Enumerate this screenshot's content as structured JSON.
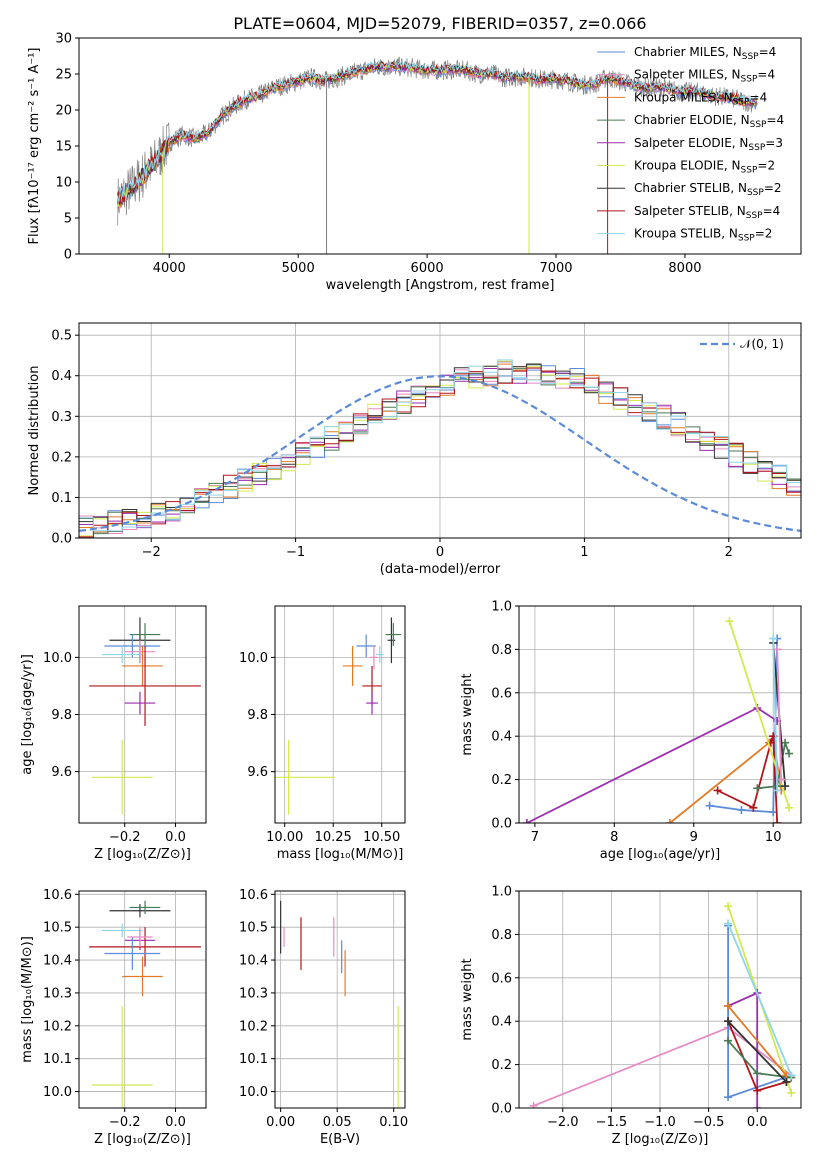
{
  "colors": {
    "chabrier_miles": "#5b8bd9",
    "salpeter_miles": "#e88bc4",
    "kroupa_miles": "#e07b2a",
    "chabrier_elodie": "#4a7a55",
    "salpeter_elodie": "#9b2fae",
    "kroupa_elodie": "#d4e850",
    "chabrier_stelib": "#333333",
    "salpeter_stelib": "#b3141a",
    "kroupa_stelib": "#8fd6e8",
    "data": "#808080",
    "normal": "#5b8bd9"
  },
  "chart_data": [
    {
      "id": "spectrum",
      "type": "line",
      "title": "PLATE=0604, MJD=52079, FIBERID=0357, z=0.066",
      "xlabel": "wavelength [Angstrom, rest frame]",
      "ylabel": "Flux [fλ10⁻¹⁷ erg cm⁻² s⁻¹ A⁻¹]",
      "xlim": [
        3300,
        8900
      ],
      "ylim": [
        0,
        30
      ],
      "xticks": [
        "4000",
        "5000",
        "6000",
        "7000",
        "8000"
      ],
      "yticks": [
        "0",
        "5",
        "10",
        "15",
        "20",
        "25",
        "30"
      ],
      "grid": false,
      "legend_placement": "right",
      "legend": [
        {
          "label": "Chabrier MILES, N",
          "sub": "SSP",
          "suffix": "=4",
          "color": "chabrier_miles"
        },
        {
          "label": "Salpeter MILES, N",
          "sub": "SSP",
          "suffix": "=4",
          "color": "salpeter_miles"
        },
        {
          "label": "Kroupa MILES, N",
          "sub": "SSP",
          "suffix": "=4",
          "color": "kroupa_miles"
        },
        {
          "label": "Chabrier ELODIE, N",
          "sub": "SSP",
          "suffix": "=4",
          "color": "chabrier_elodie"
        },
        {
          "label": "Salpeter ELODIE, N",
          "sub": "SSP",
          "suffix": "=3",
          "color": "salpeter_elodie"
        },
        {
          "label": "Kroupa ELODIE, N",
          "sub": "SSP",
          "suffix": "=2",
          "color": "kroupa_elodie"
        },
        {
          "label": "Chabrier STELIB, N",
          "sub": "SSP",
          "suffix": "=2",
          "color": "chabrier_stelib"
        },
        {
          "label": "Salpeter STELIB, N",
          "sub": "SSP",
          "suffix": "=4",
          "color": "salpeter_stelib"
        },
        {
          "label": "Kroupa STELIB, N",
          "sub": "SSP",
          "suffix": "=2",
          "color": "kroupa_stelib"
        }
      ],
      "continuum": [
        [
          3600,
          7.5
        ],
        [
          3700,
          9
        ],
        [
          3800,
          11
        ],
        [
          3900,
          13
        ],
        [
          4000,
          15.5
        ],
        [
          4100,
          16.5
        ],
        [
          4200,
          16
        ],
        [
          4300,
          16.8
        ],
        [
          4400,
          19
        ],
        [
          4500,
          20.5
        ],
        [
          4600,
          21.5
        ],
        [
          4700,
          22
        ],
        [
          4800,
          23
        ],
        [
          4900,
          23.5
        ],
        [
          5000,
          24
        ],
        [
          5100,
          24.5
        ],
        [
          5200,
          24
        ],
        [
          5300,
          24.5
        ],
        [
          5400,
          25
        ],
        [
          5500,
          25.5
        ],
        [
          5600,
          26
        ],
        [
          5700,
          26
        ],
        [
          5800,
          26
        ],
        [
          5900,
          25.8
        ],
        [
          6000,
          25.5
        ],
        [
          6100,
          25.5
        ],
        [
          6200,
          25.6
        ],
        [
          6300,
          25.5
        ],
        [
          6400,
          25
        ],
        [
          6500,
          25
        ],
        [
          6600,
          24.5
        ],
        [
          6700,
          24.6
        ],
        [
          6800,
          24.5
        ],
        [
          6900,
          24.2
        ],
        [
          7000,
          24.3
        ],
        [
          7100,
          24
        ],
        [
          7200,
          23.5
        ],
        [
          7300,
          23.6
        ],
        [
          7400,
          24.5
        ],
        [
          7500,
          24
        ],
        [
          7600,
          23.5
        ],
        [
          7700,
          23
        ],
        [
          7800,
          23.2
        ],
        [
          7900,
          22.8
        ],
        [
          8000,
          22.5
        ],
        [
          8100,
          22.5
        ],
        [
          8200,
          22
        ],
        [
          8300,
          21.8
        ],
        [
          8400,
          21.5
        ],
        [
          8500,
          21
        ],
        [
          8560,
          21
        ]
      ],
      "features": [
        {
          "x": 5220,
          "y": 0,
          "color": "data"
        },
        {
          "x": 6790,
          "y": 0,
          "color": "kroupa_elodie"
        },
        {
          "x": 7400,
          "y": 0,
          "color": "salpeter_stelib"
        },
        {
          "x": 3950,
          "y": 0,
          "color": "kroupa_elodie"
        }
      ]
    },
    {
      "id": "residuals",
      "type": "histogram",
      "xlabel": "(data-model)/error",
      "ylabel": "Normed distribution",
      "xlim": [
        -2.5,
        2.5
      ],
      "ylim": [
        0,
        0.53
      ],
      "xticks": [
        "−2",
        "−1",
        "0",
        "1",
        "2"
      ],
      "yticks": [
        "0.0",
        "0.1",
        "0.2",
        "0.3",
        "0.4",
        "0.5"
      ],
      "grid": true,
      "legend_placement": "top-right",
      "legend": [
        {
          "label": "𝒩(0, 1)",
          "color": "normal",
          "dashed": true
        }
      ],
      "bin_width": 0.1,
      "bin_start": -2.5,
      "base_values": [
        0.027,
        0.032,
        0.038,
        0.045,
        0.052,
        0.06,
        0.07,
        0.082,
        0.095,
        0.11,
        0.125,
        0.14,
        0.155,
        0.172,
        0.19,
        0.21,
        0.225,
        0.245,
        0.262,
        0.282,
        0.3,
        0.318,
        0.335,
        0.352,
        0.368,
        0.38,
        0.39,
        0.4,
        0.405,
        0.41,
        0.41,
        0.41,
        0.405,
        0.398,
        0.39,
        0.375,
        0.36,
        0.345,
        0.33,
        0.315,
        0.298,
        0.28,
        0.262,
        0.245,
        0.225,
        0.205,
        0.185,
        0.168,
        0.15,
        0.13,
        0.118,
        0.104,
        0.09,
        0.078,
        0.067,
        0.058,
        0.05,
        0.043,
        0.037,
        0.032,
        0.027,
        0.025,
        0.022,
        0.02,
        0.018,
        0.015,
        0.013,
        0.012,
        0.011,
        0.01
      ]
    },
    {
      "id": "age_vs_Z",
      "type": "scatter",
      "xlabel": "Z [log₁₀(Z/Z⊙)]",
      "ylabel": "age  [log₁₀(age/yr)]",
      "xlim": [
        -0.38,
        0.12
      ],
      "ylim": [
        9.42,
        10.18
      ],
      "xticks": [
        "−0.2",
        "0.0"
      ],
      "yticks": [
        "9.6",
        "9.8",
        "10.0"
      ],
      "grid": true,
      "points": [
        {
          "x": -0.14,
          "y": 10.06,
          "xerr": 0.12,
          "yerr": 0.08,
          "color": "chabrier_stelib"
        },
        {
          "x": -0.12,
          "y": 10.08,
          "xerr": 0.06,
          "yerr": 0.04,
          "color": "chabrier_elodie"
        },
        {
          "x": -0.17,
          "y": 10.04,
          "xerr": 0.11,
          "yerr": 0.04,
          "color": "chabrier_miles"
        },
        {
          "x": -0.21,
          "y": 10.01,
          "xerr": 0.08,
          "yerr": 0.03,
          "color": "kroupa_stelib"
        },
        {
          "x": -0.14,
          "y": 10.02,
          "xerr": 0.06,
          "yerr": 0.04,
          "color": "salpeter_miles"
        },
        {
          "x": -0.13,
          "y": 9.97,
          "xerr": 0.08,
          "yerr": 0.07,
          "color": "kroupa_miles"
        },
        {
          "x": -0.12,
          "y": 9.9,
          "xerr": 0.22,
          "yerr": 0.14,
          "color": "salpeter_stelib"
        },
        {
          "x": -0.14,
          "y": 9.84,
          "xerr": 0.06,
          "yerr": 0.04,
          "color": "salpeter_elodie"
        },
        {
          "x": -0.21,
          "y": 9.58,
          "xerr": 0.12,
          "yerr": 0.13,
          "color": "kroupa_elodie"
        }
      ]
    },
    {
      "id": "age_vs_mass",
      "type": "scatter",
      "xlabel": "mass [log₁₀(M/M⊙)]",
      "ylabel": "",
      "xlim": [
        9.95,
        10.62
      ],
      "ylim": [
        9.42,
        10.18
      ],
      "xticks": [
        "10.00",
        "10.25",
        "10.50"
      ],
      "yticks": [
        "9.6",
        "9.8",
        "10.0"
      ],
      "grid": true,
      "points": [
        {
          "x": 10.55,
          "y": 10.06,
          "xerr": 0.02,
          "yerr": 0.08,
          "color": "chabrier_stelib"
        },
        {
          "x": 10.56,
          "y": 10.08,
          "xerr": 0.04,
          "yerr": 0.04,
          "color": "chabrier_elodie"
        },
        {
          "x": 10.42,
          "y": 10.04,
          "xerr": 0.05,
          "yerr": 0.04,
          "color": "chabrier_miles"
        },
        {
          "x": 10.49,
          "y": 10.01,
          "xerr": 0.02,
          "yerr": 0.03,
          "color": "kroupa_stelib"
        },
        {
          "x": 10.46,
          "y": 10.0,
          "xerr": 0.02,
          "yerr": 0.04,
          "color": "salpeter_miles"
        },
        {
          "x": 10.35,
          "y": 9.97,
          "xerr": 0.05,
          "yerr": 0.07,
          "color": "kroupa_miles"
        },
        {
          "x": 10.45,
          "y": 9.9,
          "xerr": 0.05,
          "yerr": 0.07,
          "color": "salpeter_stelib"
        },
        {
          "x": 10.45,
          "y": 9.84,
          "xerr": 0.03,
          "yerr": 0.04,
          "color": "salpeter_elodie"
        },
        {
          "x": 10.02,
          "y": 9.58,
          "xerr": 0.24,
          "yerr": 0.13,
          "color": "kroupa_elodie"
        }
      ]
    },
    {
      "id": "weight_vs_age",
      "type": "line",
      "xlabel": "age  [log₁₀(age/yr)]",
      "ylabel": "mass weight",
      "xlim": [
        6.8,
        10.35
      ],
      "ylim": [
        0,
        1
      ],
      "xticks": [
        "7",
        "8",
        "9",
        "10"
      ],
      "yticks": [
        "0.0",
        "0.2",
        "0.4",
        "0.6",
        "0.8",
        "1.0"
      ],
      "grid": true,
      "series": [
        {
          "color": "salpeter_elodie",
          "x": [
            6.9,
            9.8,
            10.05
          ],
          "y": [
            0.0,
            0.53,
            0.47
          ]
        },
        {
          "color": "kroupa_miles",
          "x": [
            8.7,
            9.95,
            10.0,
            10.1
          ],
          "y": [
            0.0,
            0.37,
            0.4,
            0.15
          ]
        },
        {
          "color": "chabrier_miles",
          "x": [
            9.2,
            9.6,
            10.0,
            10.05
          ],
          "y": [
            0.08,
            0.06,
            0.05,
            0.85
          ]
        },
        {
          "color": "salpeter_stelib",
          "x": [
            9.3,
            9.75,
            9.97,
            10.0,
            10.05
          ],
          "y": [
            0.15,
            0.07,
            0.37,
            0.4,
            0.0
          ]
        },
        {
          "color": "kroupa_elodie",
          "x": [
            9.45,
            10.2
          ],
          "y": [
            0.93,
            0.07
          ]
        },
        {
          "color": "chabrier_elodie",
          "x": [
            9.8,
            10.05,
            10.15,
            10.2
          ],
          "y": [
            0.16,
            0.17,
            0.37,
            0.32
          ]
        },
        {
          "color": "chabrier_stelib",
          "x": [
            10.0,
            10.15
          ],
          "y": [
            0.83,
            0.17
          ]
        },
        {
          "color": "kroupa_stelib",
          "x": [
            10.0,
            10.05
          ],
          "y": [
            0.85,
            0.15
          ]
        },
        {
          "color": "salpeter_miles",
          "x": [
            10.05,
            10.1
          ],
          "y": [
            0.8,
            0.2
          ]
        }
      ]
    },
    {
      "id": "mass_vs_Z",
      "type": "scatter",
      "xlabel": "Z [log₁₀(Z/Z⊙)]",
      "ylabel": "mass [log₁₀(M/M⊙)]",
      "xlim": [
        -0.38,
        0.12
      ],
      "ylim": [
        9.95,
        10.61
      ],
      "xticks": [
        "−0.2",
        "0.0"
      ],
      "yticks": [
        "10.0",
        "10.1",
        "10.2",
        "10.3",
        "10.4",
        "10.5",
        "10.6"
      ],
      "grid": true,
      "points": [
        {
          "x": -0.14,
          "y": 10.55,
          "xerr": 0.12,
          "yerr": 0.02,
          "color": "chabrier_stelib"
        },
        {
          "x": -0.12,
          "y": 10.56,
          "xerr": 0.06,
          "yerr": 0.02,
          "color": "chabrier_elodie"
        },
        {
          "x": -0.21,
          "y": 10.49,
          "xerr": 0.08,
          "yerr": 0.02,
          "color": "kroupa_stelib"
        },
        {
          "x": -0.14,
          "y": 10.46,
          "xerr": 0.06,
          "yerr": 0.03,
          "color": "salpeter_elodie"
        },
        {
          "x": -0.12,
          "y": 10.44,
          "xerr": 0.22,
          "yerr": 0.06,
          "color": "salpeter_stelib"
        },
        {
          "x": -0.17,
          "y": 10.42,
          "xerr": 0.11,
          "yerr": 0.05,
          "color": "chabrier_miles"
        },
        {
          "x": -0.14,
          "y": 10.47,
          "xerr": 0.05,
          "yerr": 0.03,
          "color": "salpeter_miles"
        },
        {
          "x": -0.13,
          "y": 10.35,
          "xerr": 0.08,
          "yerr": 0.06,
          "color": "kroupa_miles"
        },
        {
          "x": -0.21,
          "y": 10.02,
          "xerr": 0.12,
          "yerr": 0.24,
          "color": "kroupa_elodie"
        }
      ]
    },
    {
      "id": "mass_vs_ebv",
      "type": "scatter",
      "xlabel": "E(B-V)",
      "ylabel": "",
      "xlim": [
        -0.005,
        0.11
      ],
      "ylim": [
        9.95,
        10.61
      ],
      "xticks": [
        "0.00",
        "0.05",
        "0.10"
      ],
      "yticks": [
        "10.0",
        "10.1",
        "10.2",
        "10.3",
        "10.4",
        "10.5",
        "10.6"
      ],
      "grid": true,
      "points": [
        {
          "x": 0.0,
          "y": 10.5,
          "xerr": 0,
          "yerr": 0.08,
          "color": "chabrier_stelib"
        },
        {
          "x": 0.003,
          "y": 10.47,
          "xerr": 0,
          "yerr": 0.03,
          "color": "salpeter_miles"
        },
        {
          "x": 0.018,
          "y": 10.45,
          "xerr": 0,
          "yerr": 0.08,
          "color": "salpeter_stelib"
        },
        {
          "x": 0.047,
          "y": 10.47,
          "xerr": 0,
          "yerr": 0.06,
          "color": "salpeter_miles"
        },
        {
          "x": 0.054,
          "y": 10.41,
          "xerr": 0,
          "yerr": 0.05,
          "color": "chabrier_miles"
        },
        {
          "x": 0.057,
          "y": 10.36,
          "xerr": 0,
          "yerr": 0.07,
          "color": "kroupa_miles"
        },
        {
          "x": 0.104,
          "y": 10.07,
          "xerr": 0,
          "yerr": 0.19,
          "color": "kroupa_elodie"
        }
      ]
    },
    {
      "id": "weight_vs_Z",
      "type": "line",
      "xlabel": "Z [log₁₀(Z/Z⊙)]",
      "ylabel": "mass weight",
      "xlim": [
        -2.45,
        0.45
      ],
      "ylim": [
        0,
        1
      ],
      "xticks": [
        "−2.0",
        "−1.5",
        "−1.0",
        "−0.5",
        "0.0"
      ],
      "yticks": [
        "0.0",
        "0.2",
        "0.4",
        "0.6",
        "0.8",
        "1.0"
      ],
      "grid": true,
      "series": [
        {
          "color": "salpeter_miles",
          "x": [
            -2.3,
            -0.3,
            0.35
          ],
          "y": [
            0.01,
            0.37,
            0.15
          ]
        },
        {
          "color": "kroupa_elodie",
          "x": [
            -0.3,
            0.35
          ],
          "y": [
            0.93,
            0.07
          ]
        },
        {
          "color": "chabrier_miles",
          "x": [
            -0.3,
            -0.3,
            0.35
          ],
          "y": [
            0.84,
            0.05,
            0.15
          ]
        },
        {
          "color": "salpeter_elodie",
          "x": [
            -0.3,
            0.0,
            0.0
          ],
          "y": [
            0.47,
            0.53,
            0.0
          ]
        },
        {
          "color": "salpeter_stelib",
          "x": [
            -0.3,
            0.0,
            0.3
          ],
          "y": [
            0.4,
            0.08,
            0.12
          ]
        },
        {
          "color": "chabrier_elodie",
          "x": [
            -0.3,
            0.0,
            0.35
          ],
          "y": [
            0.31,
            0.16,
            0.14
          ]
        },
        {
          "color": "kroupa_miles",
          "x": [
            -0.3,
            0.3
          ],
          "y": [
            0.47,
            0.15
          ]
        },
        {
          "color": "kroupa_stelib",
          "x": [
            -0.3,
            0.35
          ],
          "y": [
            0.85,
            0.15
          ]
        },
        {
          "color": "chabrier_stelib",
          "x": [
            -0.3,
            0.3
          ],
          "y": [
            0.4,
            0.12
          ]
        }
      ]
    }
  ]
}
